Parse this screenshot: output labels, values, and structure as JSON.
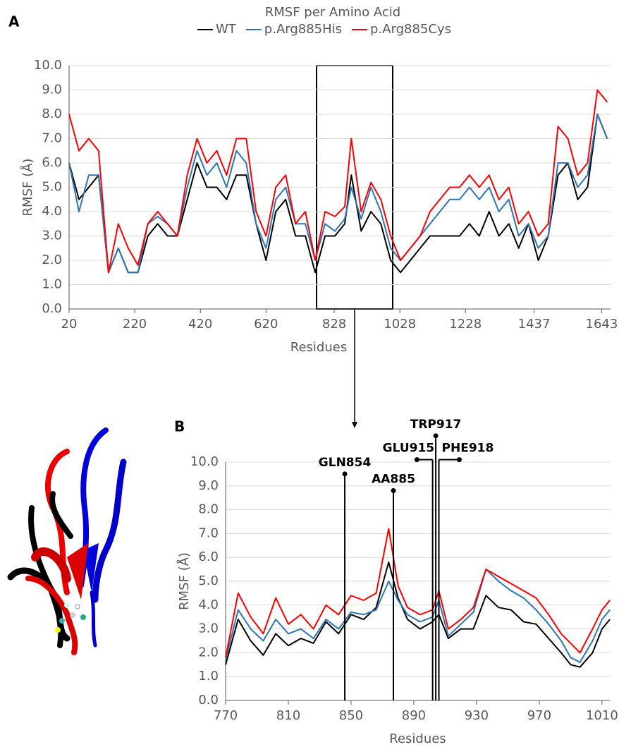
{
  "chart_data": [
    {
      "type": "line",
      "label": "A",
      "title": "RMSF per Amino Acid",
      "xlabel": "Residues",
      "ylabel": "RMSF (Å)",
      "x": [
        20,
        50,
        80,
        110,
        140,
        170,
        200,
        230,
        260,
        290,
        320,
        350,
        380,
        410,
        440,
        470,
        500,
        530,
        560,
        590,
        620,
        650,
        680,
        710,
        740,
        770,
        800,
        830,
        860,
        880,
        910,
        940,
        970,
        1000,
        1030,
        1060,
        1090,
        1120,
        1150,
        1180,
        1210,
        1240,
        1270,
        1300,
        1330,
        1360,
        1390,
        1420,
        1450,
        1480,
        1510,
        1540,
        1570,
        1600,
        1630,
        1660
      ],
      "series": [
        {
          "name": "WT",
          "color": "#000000",
          "values": [
            6,
            4.5,
            5,
            5.5,
            1.5,
            2.5,
            1.5,
            1.5,
            3,
            3.5,
            3,
            3,
            4.5,
            6,
            5,
            5,
            4.5,
            5.5,
            5.5,
            3.5,
            2,
            4,
            4.5,
            3,
            3,
            1.5,
            3,
            3,
            3.5,
            5.5,
            3.2,
            4,
            3.5,
            2,
            1.5,
            2,
            2.5,
            3,
            3,
            3,
            3,
            3.5,
            3,
            4,
            3,
            3.5,
            2.5,
            3.5,
            2,
            3,
            5.5,
            6,
            4.5,
            5,
            8,
            7
          ]
        },
        {
          "name": "p.Arg885His",
          "color": "#2e75b6",
          "values": [
            6,
            4,
            5.5,
            5.5,
            1.5,
            2.5,
            1.5,
            1.5,
            3.5,
            3.8,
            3.5,
            3,
            5,
            6.5,
            5.5,
            6,
            5,
            6.5,
            6,
            3.5,
            2.5,
            4.5,
            5,
            3.5,
            3.5,
            2,
            3.5,
            3.2,
            3.7,
            5,
            3.7,
            5,
            4,
            2.5,
            2,
            2.5,
            3,
            3.5,
            4,
            4.5,
            4.5,
            5,
            4.5,
            5,
            4,
            4.5,
            3,
            3.5,
            2.5,
            3,
            6,
            6,
            5,
            5.5,
            8,
            7
          ]
        },
        {
          "name": "p.Arg885Cys",
          "color": "#ff0000",
          "values": [
            8,
            6.5,
            7,
            6.5,
            1.5,
            3.5,
            2.5,
            1.8,
            3.5,
            4,
            3.5,
            3,
            5.5,
            7,
            6,
            6.5,
            5.5,
            7,
            7,
            4,
            3,
            5,
            5.5,
            3.5,
            4,
            2,
            4,
            3.8,
            4.2,
            7,
            4,
            5.2,
            4.5,
            3,
            2,
            2.5,
            3,
            4,
            4.5,
            5,
            5,
            5.5,
            5,
            5.5,
            4.5,
            5,
            3.5,
            4,
            3,
            3.5,
            7.5,
            7,
            5.5,
            6,
            9,
            8.5
          ]
        }
      ],
      "xlim": [
        20,
        1670
      ],
      "xticks": [
        20,
        220,
        420,
        620,
        828,
        1028,
        1228,
        1437,
        1643
      ],
      "ylim": [
        0,
        10
      ],
      "yticks": [
        {
          "value": 0,
          "label": "0.0"
        },
        {
          "value": 1,
          "label": "1.0"
        },
        {
          "value": 2,
          "label": "2.0"
        },
        {
          "value": 3,
          "label": "3.0"
        },
        {
          "value": 4,
          "label": "4.0"
        },
        {
          "value": 5,
          "label": "5.0"
        },
        {
          "value": 6,
          "label": "6.0"
        },
        {
          "value": 7,
          "label": "7.0"
        },
        {
          "value": 8,
          "label": "8.0"
        },
        {
          "value": 9,
          "label": "9.0"
        },
        {
          "value": 10,
          "label": "10.0"
        }
      ],
      "grid": true,
      "legend": "top"
    },
    {
      "type": "line",
      "label": "B",
      "xlabel": "Residues",
      "ylabel": "RMSF (Å)",
      "x": [
        770,
        778,
        786,
        794,
        802,
        810,
        818,
        826,
        834,
        842,
        850,
        858,
        866,
        874,
        880,
        886,
        894,
        902,
        906,
        912,
        920,
        928,
        936,
        944,
        952,
        960,
        968,
        976,
        984,
        990,
        996,
        1004,
        1010,
        1015
      ],
      "series": [
        {
          "color": "#000000",
          "values": [
            1.5,
            3.4,
            2.5,
            1.9,
            2.8,
            2.3,
            2.6,
            2.4,
            3.3,
            2.8,
            3.6,
            3.4,
            3.9,
            5.8,
            4.3,
            3.4,
            3,
            3.3,
            3.6,
            2.6,
            3,
            3,
            4.4,
            3.9,
            3.8,
            3.3,
            3.2,
            2.6,
            2,
            1.5,
            1.4,
            2,
            3,
            3.4
          ]
        },
        {
          "color": "#2e75b6",
          "values": [
            1.7,
            3.8,
            3,
            2.5,
            3.4,
            2.8,
            3,
            2.6,
            3.4,
            3,
            3.7,
            3.6,
            3.8,
            5,
            4.2,
            3.6,
            3.3,
            3.5,
            4.2,
            2.7,
            3.2,
            3.7,
            5.5,
            5,
            4.6,
            4.3,
            3.8,
            3.2,
            2.5,
            1.8,
            1.6,
            2.5,
            3.4,
            3.8
          ]
        },
        {
          "color": "#ff0000",
          "values": [
            1.8,
            4.5,
            3.5,
            2.8,
            4.3,
            3.2,
            3.6,
            3,
            4,
            3.6,
            4.4,
            4.2,
            4.5,
            7.2,
            4.8,
            3.9,
            3.6,
            3.8,
            4.6,
            3,
            3.4,
            3.9,
            5.5,
            5.2,
            4.9,
            4.6,
            4.3,
            3.6,
            2.8,
            2.4,
            2,
            3,
            3.8,
            4.2
          ]
        }
      ],
      "xlim": [
        770,
        1015
      ],
      "xticks": [
        770,
        810,
        850,
        890,
        930,
        970,
        1010
      ],
      "ylim": [
        0,
        10
      ],
      "yticks": [
        {
          "value": 0,
          "label": "0.0"
        },
        {
          "value": 1,
          "label": "1.0"
        },
        {
          "value": 2,
          "label": "2.0"
        },
        {
          "value": 3,
          "label": "3.0"
        },
        {
          "value": 4,
          "label": "4.0"
        },
        {
          "value": 5,
          "label": "5.0"
        },
        {
          "value": 6,
          "label": "6.0"
        },
        {
          "value": 7,
          "label": "7.0"
        },
        {
          "value": 8,
          "label": "8.0"
        },
        {
          "value": 9,
          "label": "9.0"
        },
        {
          "value": 10,
          "label": "10.0"
        }
      ],
      "grid": true,
      "annotations": [
        {
          "text": "GLN854",
          "x": 846,
          "y": 9.5
        },
        {
          "text": "AA885",
          "x": 877,
          "y": 8.8
        },
        {
          "text": "GLU915",
          "x": 902,
          "y": 10.1,
          "dot_x": 892
        },
        {
          "text": "TRP917",
          "x": 904,
          "y": 11.1
        },
        {
          "text": "PHE918",
          "x": 906,
          "y": 10.1,
          "dot_x": 919
        }
      ]
    }
  ]
}
